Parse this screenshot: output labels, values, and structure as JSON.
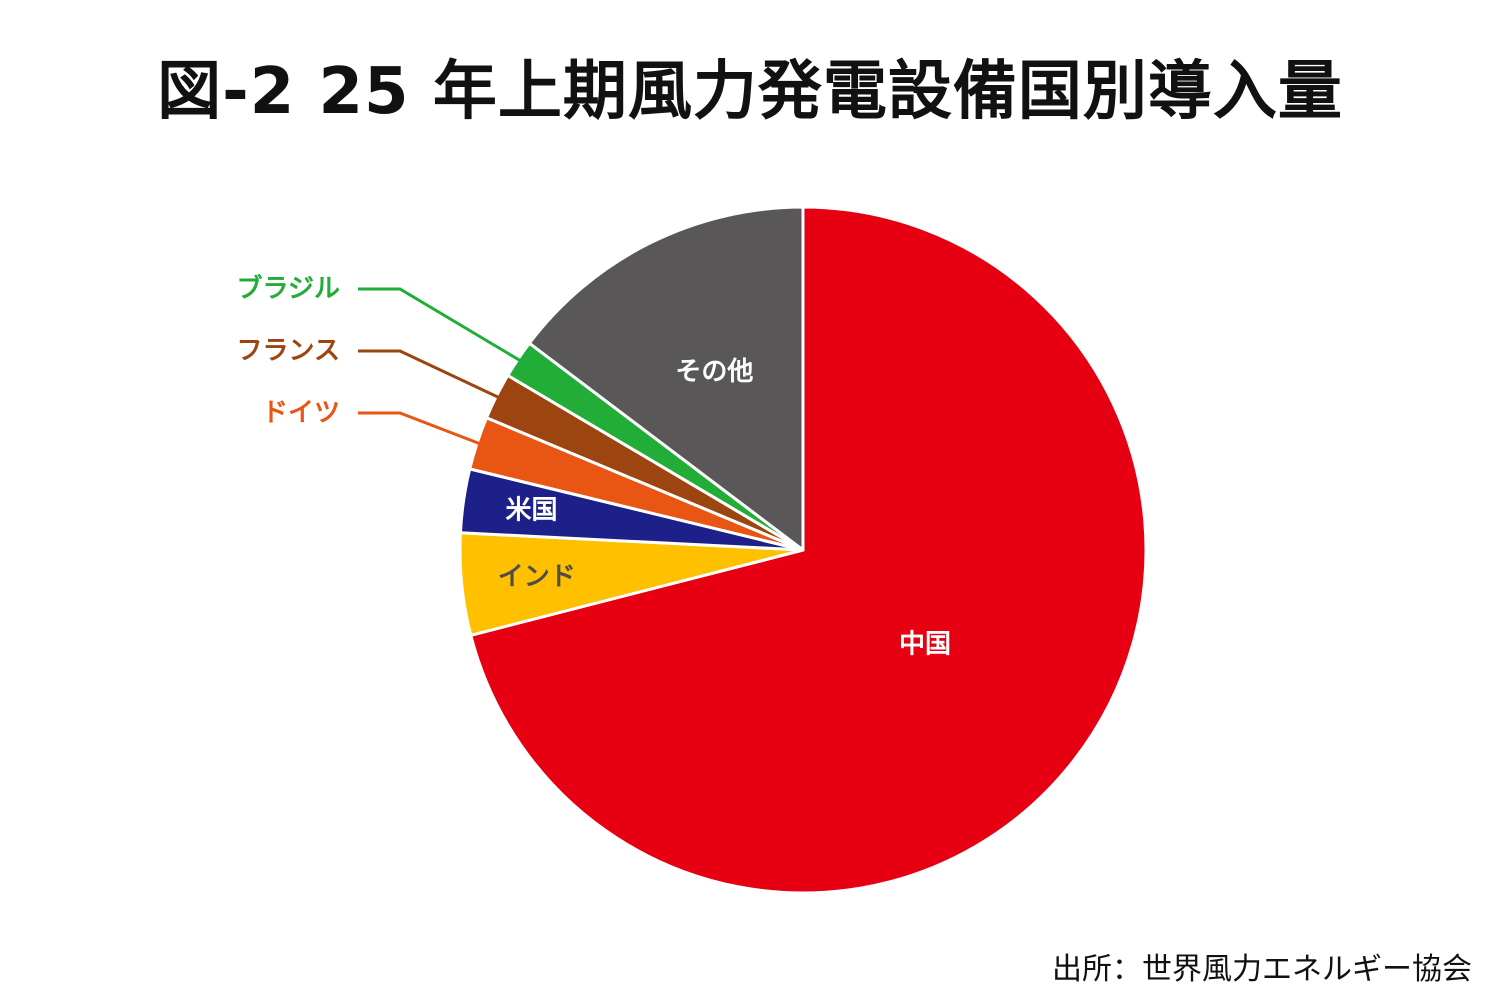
{
  "title": "図-2 25 年上期風力発電設備国別導入量",
  "source": "出所：世界風力エネルギー協会",
  "chart_data": {
    "type": "pie",
    "title": "図-2 25 年上期風力発電設備国別導入量",
    "start_angle": "12 o'clock, clockwise",
    "slices": [
      {
        "label": "中国",
        "value": 71.0,
        "color": "#e60012",
        "label_color": "#ffffff",
        "label_mode": "inside"
      },
      {
        "label": "インド",
        "value": 4.8,
        "color": "#ffc000",
        "label_color": "#4d4d4d",
        "label_mode": "inside"
      },
      {
        "label": "米国",
        "value": 3.0,
        "color": "#1d2088",
        "label_color": "#ffffff",
        "label_mode": "inside"
      },
      {
        "label": "ドイツ",
        "value": 2.5,
        "color": "#e95513",
        "label_color": "#e95513",
        "label_mode": "callout"
      },
      {
        "label": "フランス",
        "value": 2.2,
        "color": "#9c4510",
        "label_color": "#9c4510",
        "label_mode": "callout"
      },
      {
        "label": "ブラジル",
        "value": 1.8,
        "color": "#22ac38",
        "label_color": "#22ac38",
        "label_mode": "callout"
      },
      {
        "label": "その他",
        "value": 14.7,
        "color": "#595757",
        "label_color": "#ffffff",
        "label_mode": "inside"
      }
    ]
  }
}
